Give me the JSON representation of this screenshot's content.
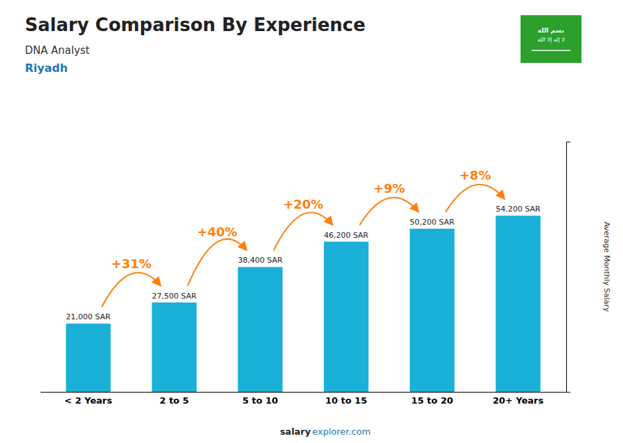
{
  "chart_data": {
    "type": "bar",
    "title": "Salary Comparison By Experience",
    "subtitle": "DNA Analyst",
    "ylabel": "Average Monthly Salary",
    "categories": [
      "< 2 Years",
      "2 to 5",
      "5 to 10",
      "10 to 15",
      "15 to 20",
      "20+ Years"
    ],
    "values": [
      21000,
      27500,
      38400,
      46200,
      50200,
      54200
    ],
    "value_labels": [
      "21,000 SAR",
      "27,500 SAR",
      "38,400 SAR",
      "46,200 SAR",
      "50,200 SAR",
      "54,200 SAR"
    ],
    "data_labels": true,
    "color": "#1ab0d8",
    "ylim": [
      0,
      76964
    ],
    "tick_labels": "x",
    "grid": false,
    "annotations": [
      {
        "text": "Riyadh"
      },
      {
        "text": "+31%",
        "from": "< 2 Years",
        "to": "2 to 5"
      },
      {
        "text": "+40%",
        "from": "2 to 5",
        "to": "5 to 10"
      },
      {
        "text": "+20%",
        "from": "5 to 10",
        "to": "10 to 15"
      },
      {
        "text": "+9%",
        "from": "10 to 15",
        "to": "15 to 20"
      },
      {
        "text": "+8%",
        "from": "15 to 20",
        "to": "20+ Years"
      },
      {
        "text": "salary"
      },
      {
        "text": "explorer.com"
      },
      {
        "text": "بسم الله"
      },
      {
        "text": "لا إله إلا الله"
      }
    ]
  }
}
